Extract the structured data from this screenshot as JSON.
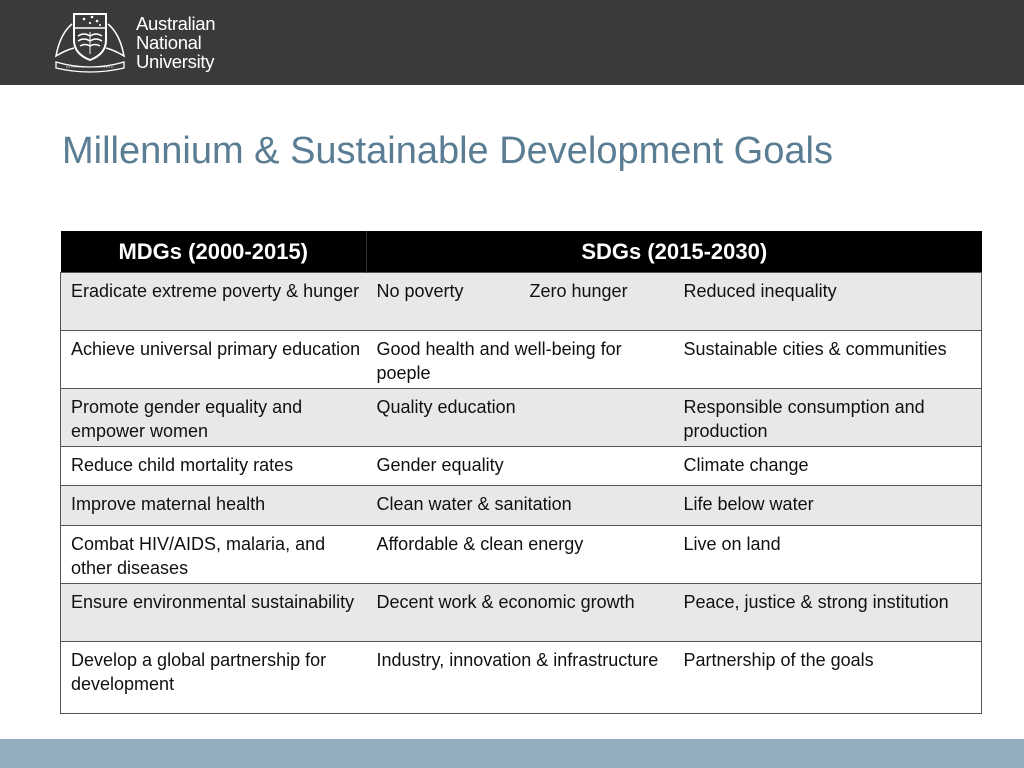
{
  "header": {
    "logo_lines": [
      "Australian",
      "National",
      "University"
    ],
    "colors": {
      "bar": "#3a3a3a",
      "bottom_band": "#93afbe",
      "title": "#5a7d94"
    }
  },
  "slide": {
    "title": "Millennium & Sustainable Development Goals"
  },
  "table": {
    "headers": {
      "mdgs": "MDGs (2000-2015)",
      "sdgs": "SDGs (2015-2030)"
    },
    "rows": [
      {
        "mdg": "Eradicate extreme poverty & hunger",
        "sdg_a": "No poverty",
        "sdg_b": "Zero hunger",
        "sdg_c": "Reduced inequality"
      },
      {
        "mdg": "Achieve universal primary education",
        "sdg_ab": "Good health and well-being for poeple",
        "sdg_c": "Sustainable cities & communities"
      },
      {
        "mdg": "Promote gender equality and empower women",
        "sdg_ab": "Quality education",
        "sdg_c": "Responsible consumption and production"
      },
      {
        "mdg": "Reduce child mortality rates",
        "sdg_ab": "Gender equality",
        "sdg_c": "Climate change"
      },
      {
        "mdg": "Improve maternal health",
        "sdg_ab": "Clean water & sanitation",
        "sdg_c": "Life below water"
      },
      {
        "mdg": "Combat HIV/AIDS, malaria, and other diseases",
        "sdg_ab": "Affordable & clean energy",
        "sdg_c": "Live on land"
      },
      {
        "mdg": "Ensure environmental sustainability",
        "sdg_ab": "Decent work & economic growth",
        "sdg_c": "Peace, justice & strong institution"
      },
      {
        "mdg": "Develop a global partnership for development",
        "sdg_ab": "Industry, innovation & infrastructure",
        "sdg_c": "Partnership of the goals"
      }
    ]
  }
}
